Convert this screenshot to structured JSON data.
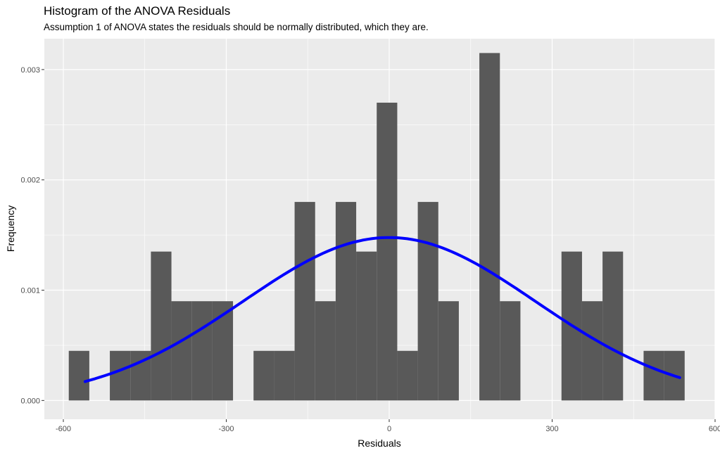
{
  "chart_data": {
    "type": "bar",
    "title": "Histogram of the ANOVA Residuals",
    "subtitle": "Assumption 1 of ANOVA states the residuals should be normally distributed, which they are.",
    "xlabel": "Residuals",
    "ylabel": "Frequency",
    "xlim": [
      -635,
      600
    ],
    "ylim": [
      -0.00017,
      0.00328
    ],
    "x_ticks": [
      -600,
      -300,
      0,
      300,
      600
    ],
    "x_tick_labels": [
      "-600",
      "-300",
      "0",
      "300",
      "600"
    ],
    "y_ticks": [
      0,
      0.001,
      0.002,
      0.003
    ],
    "y_tick_labels": [
      "0.000",
      "0.001",
      "0.002",
      "0.003"
    ],
    "grid": true,
    "bin_width": 37.8,
    "bin_start": -590,
    "bin_values": [
      0.00045,
      0,
      0.00045,
      0.00045,
      0.00135,
      0.0009,
      0.0009,
      0.0009,
      0,
      0.00045,
      0.00045,
      0.0018,
      0.0009,
      0.0018,
      0.00135,
      0.0027,
      0.00045,
      0.0018,
      0.0009,
      0,
      0.00315,
      0.0009,
      0,
      0,
      0.00135,
      0.0009,
      0.00135,
      0,
      0.00045,
      0.00045
    ],
    "bar_color": "#595959",
    "normal_curve": {
      "mean": 0,
      "sd": 270,
      "x_from": -560,
      "x_to": 535,
      "color": "#0000ff"
    }
  }
}
